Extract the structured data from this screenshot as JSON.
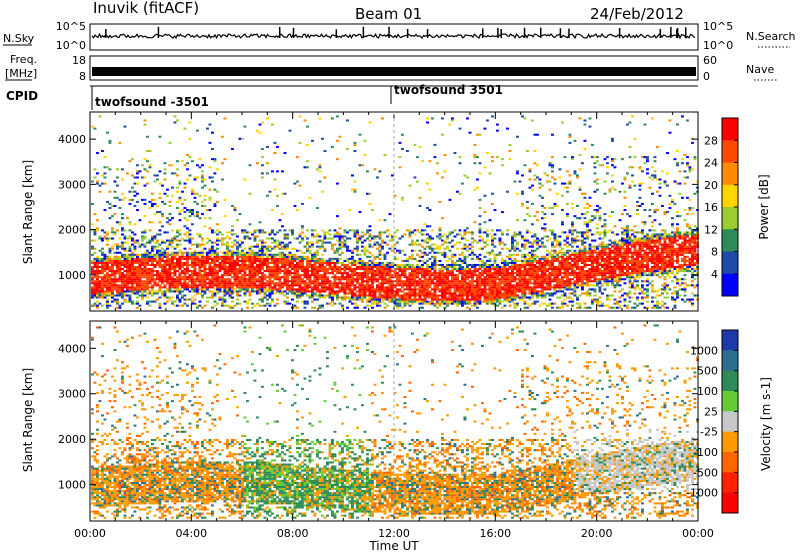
{
  "header": {
    "station": "Inuvik (fitACF)",
    "beam": "Beam 01",
    "date": "24/Feb/2012"
  },
  "panels": {
    "nsky_label": "N.Sky",
    "nsky_ticks": [
      "10^5",
      "10^0"
    ],
    "nsearch_label": "N.Search",
    "nsearch_ticks": [
      "10^5",
      "10^0"
    ],
    "freq_label_1": "Freq.",
    "freq_label_2": "[MHz]",
    "freq_ticks": [
      "18",
      "8"
    ],
    "nave_label": "Nave",
    "nave_ticks": [
      "60",
      "0"
    ],
    "cpid_label": "CPID",
    "cpid_1": "twofsound -3501",
    "cpid_2": "twofsound 3501"
  },
  "chart_data": [
    {
      "type": "heatmap",
      "name": "power",
      "xlabel": "",
      "ylabel": "Slant Range [km]",
      "xlim": [
        0,
        24
      ],
      "ylim": [
        200,
        4600
      ],
      "yticks": [
        "1000",
        "2000",
        "3000",
        "4000"
      ],
      "colorbar_label": "Power [dB]",
      "colorbar_ticks": [
        "28",
        "24",
        "20",
        "16",
        "12",
        "8",
        "4"
      ],
      "colorbar_colors": [
        "#ff0000",
        "#ff4800",
        "#ff8c00",
        "#ffd400",
        "#9acd32",
        "#2e8b57",
        "#1e4aa8",
        "#0000ff"
      ]
    },
    {
      "type": "heatmap",
      "name": "velocity",
      "xlabel": "Time UT",
      "ylabel": "Slant Range [km]",
      "xlim": [
        0,
        24
      ],
      "ylim": [
        200,
        4600
      ],
      "xticks": [
        "00:00",
        "04:00",
        "08:00",
        "12:00",
        "16:00",
        "20:00",
        "00:00"
      ],
      "yticks": [
        "1000",
        "2000",
        "3000",
        "4000"
      ],
      "colorbar_label": "Velocity [m s-1]",
      "colorbar_ticks": [
        "1000",
        "500",
        "100",
        "25",
        "-25",
        "-100",
        "-500",
        "-1000"
      ],
      "colorbar_colors": [
        "#1e3aa8",
        "#2e6e8e",
        "#2e8b57",
        "#66cc33",
        "#c8c8c8",
        "#ff9900",
        "#ff6600",
        "#ff2200",
        "#ff0000"
      ]
    }
  ]
}
